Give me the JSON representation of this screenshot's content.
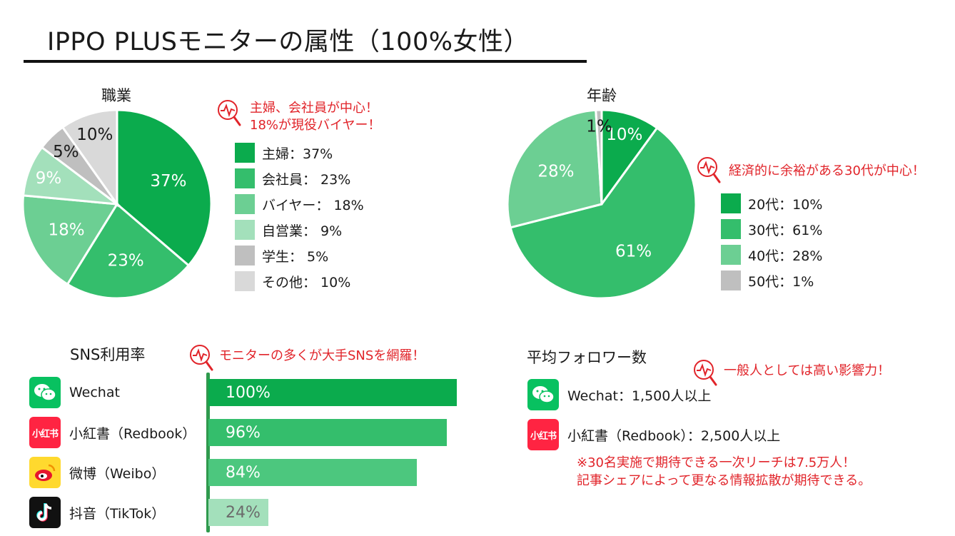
{
  "title": "IPPO PLUSモニターの属性（100%女性）",
  "chart_data": [
    {
      "type": "pie",
      "title": "職業",
      "categories": [
        "主婦",
        "会社員",
        "バイヤー",
        "自営業",
        "学生",
        "その他"
      ],
      "values": [
        37,
        23,
        18,
        9,
        5,
        10
      ],
      "slice_labels": [
        "37%",
        "23%",
        "18%",
        "9%",
        "5%",
        "10%"
      ],
      "colors": [
        "#0bab4d",
        "#34be6c",
        "#6ccf93",
        "#a3e0bb",
        "#bfbfbf",
        "#d9d9d9"
      ],
      "legend_position": "right",
      "legend": [
        "主婦：37%",
        "会社員： 23%",
        "バイヤー： 18%",
        "自営業： 9%",
        "学生： 5%",
        "その他： 10%"
      ]
    },
    {
      "type": "pie",
      "title": "年齢",
      "categories": [
        "20代",
        "30代",
        "40代",
        "50代"
      ],
      "values": [
        10,
        61,
        28,
        1
      ],
      "slice_labels": [
        "10%",
        "61%",
        "28%",
        "1%"
      ],
      "colors": [
        "#0bab4d",
        "#34be6c",
        "#6ccf93",
        "#bfbfbf"
      ],
      "legend_position": "right",
      "legend": [
        "20代：10%",
        "30代：61%",
        "40代：28%",
        "50代：1%"
      ]
    },
    {
      "type": "bar",
      "orientation": "horizontal",
      "title": "SNS利用率",
      "categories": [
        "Wechat",
        "小紅書（Redbook）",
        "微博（Weibo）",
        "抖音（TikTok）"
      ],
      "values": [
        100,
        96,
        84,
        24
      ],
      "value_labels": [
        "100%",
        "96%",
        "84%",
        "24%"
      ],
      "colors": [
        "#0bab4d",
        "#34be6c",
        "#4cc77e",
        "#a3e0bb"
      ],
      "label_colors": [
        "#ffffff",
        "#ffffff",
        "#ffffff",
        "#6b6b6b"
      ],
      "xlim": [
        0,
        100
      ]
    }
  ],
  "notes": {
    "occupation": [
      "主婦、会社員が中心！",
      "18%が現役バイヤー！"
    ],
    "age": "経済的に余裕がある30代が中心！",
    "sns": "モニターの多くが大手SNSを網羅！",
    "followers": "一般人としては高い影響力！"
  },
  "followers": {
    "title": "平均フォロワー数",
    "items": [
      "Wechat：1,500人以上",
      "小紅書（Redbook）：2,500人以上"
    ],
    "reach_note": [
      "※30名実施で期待できる一次リーチは7.5万人！",
      "記事シェアによって更なる情報拡散が期待できる。"
    ]
  },
  "icons": {
    "note_icon": "magnifier-pulse-icon",
    "wechat": "wechat-icon",
    "redbook": "xiaohongshu-icon",
    "redbook_text": "小红书",
    "weibo": "weibo-icon",
    "tiktok": "tiktok-icon"
  },
  "colors": {
    "accent_red": "#e1242a",
    "title_rule": "#111111",
    "axis": "#2f9a4d"
  }
}
